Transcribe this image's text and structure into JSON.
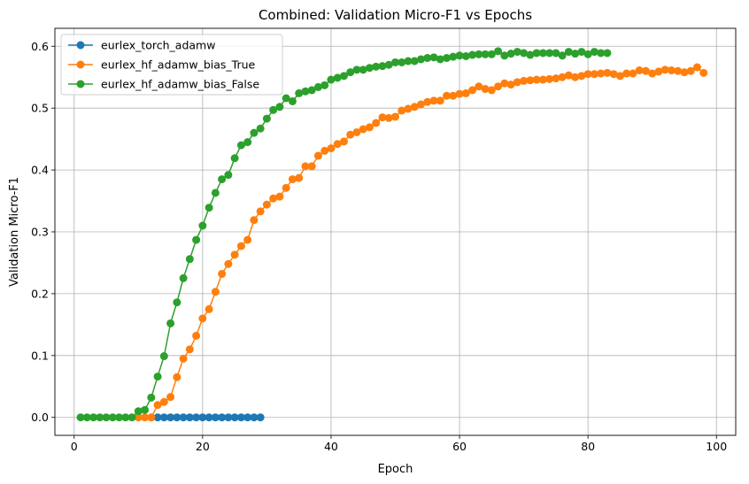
{
  "chart_data": {
    "type": "line",
    "title": "Combined: Validation Micro-F1 vs Epochs",
    "xlabel": "Epoch",
    "ylabel": "Validation Micro-F1",
    "xlim": [
      -3,
      103
    ],
    "ylim": [
      -0.029,
      0.629
    ],
    "xticks": [
      0,
      20,
      40,
      60,
      80,
      100
    ],
    "yticks": [
      0.0,
      0.1,
      0.2,
      0.3,
      0.4,
      0.5,
      0.6
    ],
    "ytick_labels": [
      "0.0",
      "0.1",
      "0.2",
      "0.3",
      "0.4",
      "0.5",
      "0.6"
    ],
    "grid": true,
    "legend_position": "top-left",
    "series": [
      {
        "name": "eurlex_torch_adamw",
        "color": "#1f77b4",
        "x": [
          12,
          13,
          14,
          15,
          16,
          17,
          18,
          19,
          20,
          21,
          22,
          23,
          24,
          25,
          26,
          27,
          28,
          29
        ],
        "y": [
          0,
          0,
          0,
          0,
          0,
          0,
          0,
          0,
          0,
          0,
          0,
          0,
          0,
          0,
          0,
          0,
          0,
          0
        ]
      },
      {
        "name": "eurlex_hf_adamw_bias_True",
        "color": "#ff7f0e",
        "x": [
          10,
          11,
          12,
          13,
          14,
          15,
          16,
          17,
          18,
          19,
          20,
          21,
          22,
          23,
          24,
          25,
          26,
          27,
          28,
          29,
          30,
          31,
          32,
          33,
          34,
          35,
          36,
          37,
          38,
          39,
          40,
          41,
          42,
          43,
          44,
          45,
          46,
          47,
          48,
          49,
          50,
          51,
          52,
          53,
          54,
          55,
          56,
          57,
          58,
          59,
          60,
          61,
          62,
          63,
          64,
          65,
          66,
          67,
          68,
          69,
          70,
          71,
          72,
          73,
          74,
          75,
          76,
          77,
          78,
          79,
          80,
          81,
          82,
          83,
          84,
          85,
          86,
          87,
          88,
          89,
          90,
          91,
          92,
          93,
          94,
          95,
          96,
          97,
          98
        ],
        "y": [
          0,
          0,
          0,
          0.02,
          0.025,
          0.033,
          0.065,
          0.095,
          0.11,
          0.132,
          0.16,
          0.175,
          0.203,
          0.232,
          0.248,
          0.263,
          0.277,
          0.287,
          0.319,
          0.333,
          0.344,
          0.354,
          0.357,
          0.371,
          0.385,
          0.387,
          0.406,
          0.406,
          0.423,
          0.431,
          0.435,
          0.442,
          0.446,
          0.457,
          0.461,
          0.466,
          0.469,
          0.476,
          0.485,
          0.484,
          0.486,
          0.496,
          0.499,
          0.502,
          0.506,
          0.51,
          0.512,
          0.512,
          0.52,
          0.52,
          0.523,
          0.524,
          0.529,
          0.535,
          0.531,
          0.529,
          0.535,
          0.54,
          0.538,
          0.542,
          0.544,
          0.545,
          0.546,
          0.546,
          0.547,
          0.548,
          0.55,
          0.553,
          0.55,
          0.552,
          0.555,
          0.555,
          0.556,
          0.557,
          0.555,
          0.552,
          0.556,
          0.556,
          0.561,
          0.56,
          0.556,
          0.559,
          0.562,
          0.561,
          0.56,
          0.558,
          0.56,
          0.566,
          0.557
        ]
      },
      {
        "name": "eurlex_hf_adamw_bias_False",
        "color": "#2ca02c",
        "x": [
          1,
          2,
          3,
          4,
          5,
          6,
          7,
          8,
          9,
          10,
          11,
          12,
          13,
          14,
          15,
          16,
          17,
          18,
          19,
          20,
          21,
          22,
          23,
          24,
          25,
          26,
          27,
          28,
          29,
          30,
          31,
          32,
          33,
          34,
          35,
          36,
          37,
          38,
          39,
          40,
          41,
          42,
          43,
          44,
          45,
          46,
          47,
          48,
          49,
          50,
          51,
          52,
          53,
          54,
          55,
          56,
          57,
          58,
          59,
          60,
          61,
          62,
          63,
          64,
          65,
          66,
          67,
          68,
          69,
          70,
          71,
          72,
          73,
          74,
          75,
          76,
          77,
          78,
          79,
          80,
          81,
          82,
          83
        ],
        "y": [
          0,
          0,
          0,
          0,
          0,
          0,
          0,
          0,
          0,
          0.01,
          0.012,
          0.032,
          0.066,
          0.099,
          0.152,
          0.186,
          0.225,
          0.256,
          0.287,
          0.31,
          0.339,
          0.363,
          0.385,
          0.392,
          0.419,
          0.44,
          0.445,
          0.46,
          0.467,
          0.483,
          0.497,
          0.502,
          0.516,
          0.511,
          0.524,
          0.527,
          0.529,
          0.534,
          0.537,
          0.546,
          0.549,
          0.552,
          0.558,
          0.562,
          0.562,
          0.565,
          0.567,
          0.568,
          0.57,
          0.574,
          0.574,
          0.576,
          0.576,
          0.579,
          0.581,
          0.582,
          0.579,
          0.581,
          0.583,
          0.585,
          0.584,
          0.586,
          0.587,
          0.587,
          0.587,
          0.592,
          0.585,
          0.588,
          0.591,
          0.589,
          0.586,
          0.589,
          0.589,
          0.589,
          0.589,
          0.585,
          0.591,
          0.588,
          0.591,
          0.587,
          0.591,
          0.589,
          0.589
        ]
      }
    ]
  }
}
